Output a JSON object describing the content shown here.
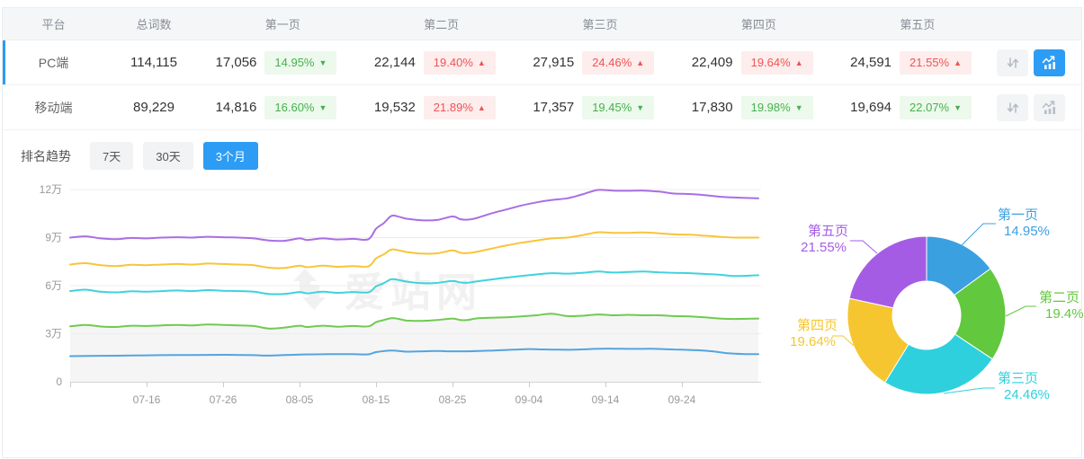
{
  "table": {
    "headers": {
      "platform": "平台",
      "total": "总词数",
      "pages": [
        "第一页",
        "第二页",
        "第三页",
        "第四页",
        "第五页"
      ]
    },
    "rows": [
      {
        "platform": "PC端",
        "total": "114,115",
        "selected": true,
        "pages": [
          {
            "count": "17,056",
            "pct": "14.95%",
            "dir": "down"
          },
          {
            "count": "22,144",
            "pct": "19.40%",
            "dir": "up"
          },
          {
            "count": "27,915",
            "pct": "24.46%",
            "dir": "up"
          },
          {
            "count": "22,409",
            "pct": "19.64%",
            "dir": "up"
          },
          {
            "count": "24,591",
            "pct": "21.55%",
            "dir": "up"
          }
        ]
      },
      {
        "platform": "移动端",
        "total": "89,229",
        "selected": false,
        "pages": [
          {
            "count": "14,816",
            "pct": "16.60%",
            "dir": "down"
          },
          {
            "count": "19,532",
            "pct": "21.89%",
            "dir": "up"
          },
          {
            "count": "17,357",
            "pct": "19.45%",
            "dir": "down"
          },
          {
            "count": "17,830",
            "pct": "19.98%",
            "dir": "down"
          },
          {
            "count": "19,694",
            "pct": "22.07%",
            "dir": "down"
          }
        ]
      }
    ]
  },
  "trend": {
    "title": "排名趋势",
    "ranges": [
      {
        "label": "7天",
        "active": false
      },
      {
        "label": "30天",
        "active": false
      },
      {
        "label": "3个月",
        "active": true
      }
    ]
  },
  "watermark": "爱站网",
  "colors": {
    "accent_blue": "#2d9cf4",
    "badge_up_red": "#f15353",
    "badge_down_green": "#47b14d"
  },
  "chart_data": [
    {
      "type": "line",
      "title": "排名趋势 - 3个月",
      "x_ticks": [
        "07-16",
        "07-26",
        "08-05",
        "08-15",
        "08-25",
        "09-04",
        "09-14",
        "09-24"
      ],
      "x_tick_days": [
        10,
        20,
        30,
        40,
        50,
        60,
        70,
        80
      ],
      "x_range_days": [
        0,
        90
      ],
      "y_ticks": [
        "0",
        "3万",
        "6万",
        "9万",
        "12万"
      ],
      "y_tick_values": [
        0,
        3,
        6,
        9,
        12
      ],
      "ylim_wan": [
        0,
        12
      ],
      "grid": true,
      "legend": "none",
      "unit": "万 (10k keywords, stacked cumulative by page)",
      "series": [
        {
          "name": "series-blue",
          "color": "#54a4e0",
          "area": false,
          "points": [
            [
              0,
              1.6
            ],
            [
              4,
              1.62
            ],
            [
              8,
              1.64
            ],
            [
              12,
              1.66
            ],
            [
              16,
              1.67
            ],
            [
              20,
              1.68
            ],
            [
              24,
              1.66
            ],
            [
              26,
              1.63
            ],
            [
              30,
              1.7
            ],
            [
              34,
              1.72
            ],
            [
              37,
              1.72
            ],
            [
              39,
              1.71
            ],
            [
              40,
              1.85
            ],
            [
              42,
              1.95
            ],
            [
              44,
              1.88
            ],
            [
              46,
              1.9
            ],
            [
              48,
              1.92
            ],
            [
              50,
              1.9
            ],
            [
              52,
              1.9
            ],
            [
              54,
              1.93
            ],
            [
              56,
              1.96
            ],
            [
              58,
              2.0
            ],
            [
              60,
              2.04
            ],
            [
              62,
              2.02
            ],
            [
              64,
              2.0
            ],
            [
              66,
              2.0
            ],
            [
              68,
              2.04
            ],
            [
              70,
              2.07
            ],
            [
              72,
              2.06
            ],
            [
              74,
              2.05
            ],
            [
              76,
              2.06
            ],
            [
              78,
              2.03
            ],
            [
              80,
              2.0
            ],
            [
              82,
              1.97
            ],
            [
              84,
              1.9
            ],
            [
              86,
              1.78
            ],
            [
              88,
              1.73
            ],
            [
              90,
              1.72
            ]
          ]
        },
        {
          "name": "series-green",
          "color": "#70ca52",
          "area": true,
          "area_fill": "#f5f5f5",
          "points": [
            [
              0,
              3.46
            ],
            [
              2,
              3.55
            ],
            [
              4,
              3.45
            ],
            [
              6,
              3.42
            ],
            [
              8,
              3.5
            ],
            [
              10,
              3.48
            ],
            [
              12,
              3.52
            ],
            [
              14,
              3.55
            ],
            [
              16,
              3.52
            ],
            [
              18,
              3.58
            ],
            [
              20,
              3.55
            ],
            [
              22,
              3.52
            ],
            [
              24,
              3.48
            ],
            [
              26,
              3.32
            ],
            [
              28,
              3.38
            ],
            [
              30,
              3.5
            ],
            [
              31,
              3.42
            ],
            [
              33,
              3.5
            ],
            [
              35,
              3.44
            ],
            [
              37,
              3.48
            ],
            [
              39,
              3.46
            ],
            [
              40,
              3.72
            ],
            [
              41,
              3.85
            ],
            [
              42,
              3.97
            ],
            [
              43,
              3.92
            ],
            [
              44,
              3.82
            ],
            [
              46,
              3.8
            ],
            [
              48,
              3.85
            ],
            [
              50,
              3.95
            ],
            [
              51,
              3.85
            ],
            [
              52,
              3.85
            ],
            [
              53,
              3.95
            ],
            [
              55,
              4.0
            ],
            [
              57,
              4.02
            ],
            [
              59,
              4.08
            ],
            [
              61,
              4.15
            ],
            [
              63,
              4.25
            ],
            [
              65,
              4.1
            ],
            [
              67,
              4.12
            ],
            [
              69,
              4.2
            ],
            [
              71,
              4.15
            ],
            [
              73,
              4.18
            ],
            [
              75,
              4.15
            ],
            [
              77,
              4.15
            ],
            [
              79,
              4.1
            ],
            [
              81,
              4.08
            ],
            [
              83,
              4.02
            ],
            [
              85,
              3.95
            ],
            [
              87,
              3.92
            ],
            [
              90,
              3.95
            ]
          ]
        },
        {
          "name": "series-cyan",
          "color": "#3fd2dc",
          "area": false,
          "points": [
            [
              0,
              5.66
            ],
            [
              2,
              5.75
            ],
            [
              4,
              5.62
            ],
            [
              6,
              5.58
            ],
            [
              8,
              5.65
            ],
            [
              10,
              5.62
            ],
            [
              12,
              5.66
            ],
            [
              14,
              5.7
            ],
            [
              16,
              5.66
            ],
            [
              18,
              5.72
            ],
            [
              20,
              5.68
            ],
            [
              22,
              5.66
            ],
            [
              24,
              5.62
            ],
            [
              26,
              5.48
            ],
            [
              28,
              5.48
            ],
            [
              30,
              5.6
            ],
            [
              31,
              5.52
            ],
            [
              33,
              5.62
            ],
            [
              35,
              5.55
            ],
            [
              37,
              5.6
            ],
            [
              39,
              5.58
            ],
            [
              40,
              5.95
            ],
            [
              41,
              6.15
            ],
            [
              42,
              6.4
            ],
            [
              43,
              6.35
            ],
            [
              44,
              6.25
            ],
            [
              46,
              6.15
            ],
            [
              48,
              6.17
            ],
            [
              50,
              6.3
            ],
            [
              51,
              6.2
            ],
            [
              52,
              6.18
            ],
            [
              53,
              6.25
            ],
            [
              55,
              6.38
            ],
            [
              57,
              6.5
            ],
            [
              59,
              6.6
            ],
            [
              61,
              6.7
            ],
            [
              63,
              6.78
            ],
            [
              65,
              6.75
            ],
            [
              67,
              6.8
            ],
            [
              69,
              6.88
            ],
            [
              71,
              6.82
            ],
            [
              73,
              6.85
            ],
            [
              75,
              6.88
            ],
            [
              77,
              6.83
            ],
            [
              79,
              6.8
            ],
            [
              81,
              6.78
            ],
            [
              83,
              6.73
            ],
            [
              85,
              6.68
            ],
            [
              87,
              6.6
            ],
            [
              90,
              6.65
            ]
          ]
        },
        {
          "name": "series-yellow",
          "color": "#f7c53a",
          "area": false,
          "points": [
            [
              0,
              7.32
            ],
            [
              2,
              7.4
            ],
            [
              4,
              7.28
            ],
            [
              6,
              7.22
            ],
            [
              8,
              7.3
            ],
            [
              10,
              7.28
            ],
            [
              12,
              7.32
            ],
            [
              14,
              7.35
            ],
            [
              16,
              7.32
            ],
            [
              18,
              7.38
            ],
            [
              20,
              7.35
            ],
            [
              22,
              7.32
            ],
            [
              24,
              7.28
            ],
            [
              26,
              7.12
            ],
            [
              28,
              7.1
            ],
            [
              30,
              7.25
            ],
            [
              31,
              7.15
            ],
            [
              33,
              7.25
            ],
            [
              35,
              7.18
            ],
            [
              37,
              7.22
            ],
            [
              39,
              7.2
            ],
            [
              40,
              7.7
            ],
            [
              41,
              7.95
            ],
            [
              42,
              8.25
            ],
            [
              43,
              8.2
            ],
            [
              44,
              8.1
            ],
            [
              46,
              8.0
            ],
            [
              48,
              8.02
            ],
            [
              50,
              8.2
            ],
            [
              51,
              8.05
            ],
            [
              52,
              8.03
            ],
            [
              53,
              8.1
            ],
            [
              55,
              8.3
            ],
            [
              57,
              8.5
            ],
            [
              59,
              8.68
            ],
            [
              61,
              8.82
            ],
            [
              63,
              8.95
            ],
            [
              65,
              9.0
            ],
            [
              67,
              9.15
            ],
            [
              69,
              9.33
            ],
            [
              71,
              9.3
            ],
            [
              73,
              9.3
            ],
            [
              75,
              9.32
            ],
            [
              77,
              9.27
            ],
            [
              79,
              9.2
            ],
            [
              81,
              9.18
            ],
            [
              83,
              9.12
            ],
            [
              85,
              9.05
            ],
            [
              87,
              9.0
            ],
            [
              90,
              9.0
            ]
          ]
        },
        {
          "name": "series-purple",
          "color": "#aa6ee3",
          "area": false,
          "points": [
            [
              0,
              9.0
            ],
            [
              2,
              9.08
            ],
            [
              4,
              8.95
            ],
            [
              6,
              8.9
            ],
            [
              8,
              8.98
            ],
            [
              10,
              8.95
            ],
            [
              12,
              9.0
            ],
            [
              14,
              9.02
            ],
            [
              16,
              9.0
            ],
            [
              18,
              9.05
            ],
            [
              20,
              9.02
            ],
            [
              22,
              9.0
            ],
            [
              24,
              8.95
            ],
            [
              26,
              8.82
            ],
            [
              28,
              8.8
            ],
            [
              30,
              8.95
            ],
            [
              31,
              8.85
            ],
            [
              33,
              8.95
            ],
            [
              35,
              8.88
            ],
            [
              37,
              8.92
            ],
            [
              39,
              8.9
            ],
            [
              40,
              9.55
            ],
            [
              41,
              9.9
            ],
            [
              42,
              10.35
            ],
            [
              43,
              10.3
            ],
            [
              44,
              10.18
            ],
            [
              46,
              10.08
            ],
            [
              48,
              10.1
            ],
            [
              50,
              10.32
            ],
            [
              51,
              10.15
            ],
            [
              52,
              10.12
            ],
            [
              53,
              10.2
            ],
            [
              55,
              10.5
            ],
            [
              57,
              10.75
            ],
            [
              59,
              11.0
            ],
            [
              61,
              11.2
            ],
            [
              63,
              11.35
            ],
            [
              65,
              11.45
            ],
            [
              67,
              11.7
            ],
            [
              69,
              11.97
            ],
            [
              71,
              11.93
            ],
            [
              73,
              11.92
            ],
            [
              75,
              11.93
            ],
            [
              77,
              11.87
            ],
            [
              79,
              11.75
            ],
            [
              81,
              11.72
            ],
            [
              83,
              11.65
            ],
            [
              85,
              11.55
            ],
            [
              87,
              11.5
            ],
            [
              90,
              11.45
            ]
          ]
        }
      ]
    },
    {
      "type": "pie",
      "donut": true,
      "labels": [
        "第一页",
        "第二页",
        "第三页",
        "第四页",
        "第五页"
      ],
      "values": [
        14.95,
        19.4,
        24.46,
        19.64,
        21.55
      ],
      "value_labels": [
        "14.95%",
        "19.4%",
        "24.46%",
        "19.64%",
        "21.55%"
      ],
      "colors": [
        "#3ba0e0",
        "#62c83e",
        "#2ed0dd",
        "#f5c62f",
        "#a55ce5"
      ],
      "start_angle": "top, clockwise"
    }
  ]
}
